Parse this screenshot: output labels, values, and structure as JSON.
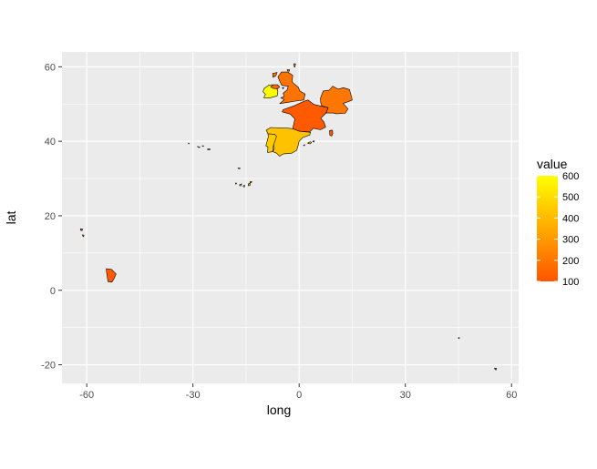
{
  "chart_data": {
    "type": "map",
    "title": "",
    "xlabel": "long",
    "ylabel": "lat",
    "xlim": [
      -67,
      62
    ],
    "ylim": [
      -25,
      64
    ],
    "x_ticks": [
      -60,
      -30,
      0,
      30,
      60
    ],
    "x_tick_labels": [
      "-60",
      "-30",
      "0",
      "30",
      "60"
    ],
    "y_ticks": [
      -20,
      0,
      20,
      40,
      60
    ],
    "y_tick_labels": [
      "-20",
      "0",
      "20",
      "40",
      "60"
    ],
    "grid": true,
    "panel_background": "#ebebeb",
    "legend": {
      "title": "value",
      "position": "right",
      "min": 100,
      "max": 600,
      "low_color": "#ff5500",
      "high_color": "#ffff00",
      "breaks": [
        100,
        200,
        300,
        400,
        500,
        600
      ],
      "break_labels": [
        "100",
        "200",
        "300",
        "400",
        "500",
        "600"
      ]
    },
    "regions": [
      {
        "name": "France",
        "value": 115,
        "polygon": [
          [
            -4.5,
            48.5
          ],
          [
            -1.5,
            49.5
          ],
          [
            1.5,
            50.8
          ],
          [
            2.5,
            51.1
          ],
          [
            4.2,
            49.9
          ],
          [
            6,
            49.5
          ],
          [
            8.2,
            49
          ],
          [
            7.6,
            47.6
          ],
          [
            6.1,
            46.2
          ],
          [
            7,
            45.2
          ],
          [
            7.5,
            43.8
          ],
          [
            6,
            43.1
          ],
          [
            4,
            43.5
          ],
          [
            3,
            42.5
          ],
          [
            0,
            42.7
          ],
          [
            -1.8,
            43.4
          ],
          [
            -1.2,
            46
          ],
          [
            -2.5,
            47.3
          ],
          [
            -4.8,
            47.9
          ]
        ]
      },
      {
        "name": "Spain",
        "value": 420,
        "polygon": [
          [
            -9.3,
            43
          ],
          [
            -8,
            43.7
          ],
          [
            -3,
            43.5
          ],
          [
            -1.8,
            43.4
          ],
          [
            0,
            42.7
          ],
          [
            3.2,
            42.4
          ],
          [
            3,
            41.7
          ],
          [
            1,
            41
          ],
          [
            0,
            40
          ],
          [
            -0.3,
            38.8
          ],
          [
            -0.7,
            37.6
          ],
          [
            -2.1,
            36.8
          ],
          [
            -4.5,
            36.6
          ],
          [
            -5.5,
            36
          ],
          [
            -6.4,
            36.8
          ],
          [
            -7.4,
            37.2
          ],
          [
            -7,
            38.2
          ],
          [
            -7.3,
            39.6
          ],
          [
            -6.9,
            41.9
          ],
          [
            -8.8,
            42
          ]
        ]
      },
      {
        "name": "Portugal",
        "value": 450,
        "polygon": [
          [
            -8.8,
            42
          ],
          [
            -6.9,
            41.9
          ],
          [
            -6.4,
            41.3
          ],
          [
            -7,
            39.6
          ],
          [
            -7.3,
            38.8
          ],
          [
            -7.5,
            37.2
          ],
          [
            -8.9,
            37
          ],
          [
            -8.8,
            38.5
          ],
          [
            -9.4,
            38.8
          ],
          [
            -9,
            40.2
          ],
          [
            -8.7,
            41.2
          ]
        ]
      },
      {
        "name": "Germany",
        "value": 200,
        "polygon": [
          [
            6,
            51.5
          ],
          [
            6.8,
            53.5
          ],
          [
            8.5,
            53.7
          ],
          [
            9.5,
            54.8
          ],
          [
            11,
            54
          ],
          [
            12.5,
            54.4
          ],
          [
            14.2,
            53.9
          ],
          [
            14.6,
            52.6
          ],
          [
            15,
            51.1
          ],
          [
            13.2,
            50.4
          ],
          [
            12.4,
            50.2
          ],
          [
            13.8,
            48.7
          ],
          [
            13,
            47.5
          ],
          [
            10.5,
            47.4
          ],
          [
            9.6,
            47.6
          ],
          [
            7.6,
            47.6
          ],
          [
            8.2,
            49
          ],
          [
            6.4,
            49.5
          ],
          [
            6.1,
            50.3
          ]
        ]
      },
      {
        "name": "United Kingdom",
        "value": 190,
        "polygon": [
          [
            -5.5,
            50.1
          ],
          [
            -3.5,
            50.4
          ],
          [
            -1,
            50.8
          ],
          [
            1.3,
            51.1
          ],
          [
            1.7,
            52.7
          ],
          [
            0.2,
            53.5
          ],
          [
            -0.2,
            54.5
          ],
          [
            -1.5,
            55.5
          ],
          [
            -2,
            56
          ],
          [
            -1.8,
            57.7
          ],
          [
            -3.2,
            58.6
          ],
          [
            -5,
            58.6
          ],
          [
            -6,
            57.3
          ],
          [
            -5.5,
            56.2
          ],
          [
            -4.9,
            55
          ],
          [
            -3.1,
            54.8
          ],
          [
            -3.4,
            53.8
          ],
          [
            -4.5,
            52.9
          ],
          [
            -4.2,
            52
          ],
          [
            -5.2,
            51.7
          ],
          [
            -4.2,
            51.2
          ]
        ]
      },
      {
        "name": "Ireland",
        "value": 590,
        "polygon": [
          [
            -10,
            51.7
          ],
          [
            -8.5,
            51.6
          ],
          [
            -6.2,
            52.2
          ],
          [
            -6,
            53.3
          ],
          [
            -6.2,
            54
          ],
          [
            -6.9,
            54.4
          ],
          [
            -7.5,
            55.2
          ],
          [
            -8.5,
            55.1
          ],
          [
            -9.9,
            54.2
          ],
          [
            -10.2,
            53.3
          ],
          [
            -9.5,
            52.6
          ]
        ]
      },
      {
        "name": "Northern Ireland",
        "value": 160,
        "polygon": [
          [
            -7.3,
            55.2
          ],
          [
            -6.1,
            55.2
          ],
          [
            -5.5,
            54.6
          ],
          [
            -6.1,
            54.1
          ],
          [
            -7.3,
            54.2
          ],
          [
            -8.1,
            54.6
          ]
        ]
      },
      {
        "name": "Corsica",
        "value": 115,
        "polygon": [
          [
            8.6,
            42.9
          ],
          [
            9.4,
            43
          ],
          [
            9.5,
            42.1
          ],
          [
            9.2,
            41.4
          ],
          [
            8.7,
            41.6
          ],
          [
            8.6,
            42.3
          ]
        ]
      },
      {
        "name": "French Guiana",
        "value": 115,
        "polygon": [
          [
            -54.5,
            5.8
          ],
          [
            -53,
            5.6
          ],
          [
            -51.7,
            4.4
          ],
          [
            -52.2,
            3.3
          ],
          [
            -52.9,
            2.2
          ],
          [
            -54,
            2.3
          ],
          [
            -54.2,
            3.6
          ],
          [
            -54.4,
            4.9
          ]
        ]
      },
      {
        "name": "Mallorca",
        "value": 420,
        "polygon": [
          [
            2.4,
            39.5
          ],
          [
            3.1,
            39.9
          ],
          [
            3.5,
            39.7
          ],
          [
            3.1,
            39.3
          ],
          [
            2.6,
            39.4
          ]
        ]
      },
      {
        "name": "Menorca",
        "value": 420,
        "polygon": [
          [
            3.8,
            40
          ],
          [
            4.3,
            40.1
          ],
          [
            4.2,
            39.8
          ],
          [
            3.9,
            39.9
          ]
        ]
      },
      {
        "name": "Ibiza",
        "value": 420,
        "polygon": [
          [
            1.2,
            38.9
          ],
          [
            1.6,
            39.1
          ],
          [
            1.5,
            38.8
          ]
        ]
      },
      {
        "name": "Tenerife",
        "value": 420,
        "polygon": [
          [
            -16.9,
            28.3
          ],
          [
            -16.2,
            28.6
          ],
          [
            -16.5,
            28
          ],
          [
            -16.8,
            28.1
          ]
        ]
      },
      {
        "name": "Gran Canaria",
        "value": 420,
        "polygon": [
          [
            -15.8,
            28
          ],
          [
            -15.4,
            28.2
          ],
          [
            -15.4,
            27.8
          ],
          [
            -15.7,
            27.8
          ]
        ]
      },
      {
        "name": "Fuerteventura",
        "value": 420,
        "polygon": [
          [
            -14.3,
            28.7
          ],
          [
            -13.8,
            28.7
          ],
          [
            -13.9,
            28.1
          ],
          [
            -14.4,
            28.1
          ]
        ]
      },
      {
        "name": "Lanzarote",
        "value": 420,
        "polygon": [
          [
            -13.8,
            29.2
          ],
          [
            -13.4,
            29.2
          ],
          [
            -13.5,
            28.9
          ],
          [
            -13.9,
            28.9
          ]
        ]
      },
      {
        "name": "La Palma",
        "value": 420,
        "polygon": [
          [
            -18,
            28.8
          ],
          [
            -17.7,
            28.8
          ],
          [
            -17.8,
            28.5
          ],
          [
            -18,
            28.6
          ]
        ]
      },
      {
        "name": "Madeira",
        "value": 450,
        "polygon": [
          [
            -17.3,
            32.8
          ],
          [
            -16.7,
            32.8
          ],
          [
            -16.8,
            32.6
          ],
          [
            -17.2,
            32.7
          ]
        ]
      },
      {
        "name": "Guadeloupe",
        "value": 115,
        "polygon": [
          [
            -61.8,
            16.5
          ],
          [
            -61.2,
            16.5
          ],
          [
            -61.3,
            16
          ],
          [
            -61.7,
            16.1
          ]
        ]
      },
      {
        "name": "Martinique",
        "value": 115,
        "polygon": [
          [
            -61.2,
            14.9
          ],
          [
            -60.8,
            14.8
          ],
          [
            -60.9,
            14.4
          ],
          [
            -61.1,
            14.5
          ]
        ]
      },
      {
        "name": "Reunion",
        "value": 115,
        "polygon": [
          [
            55.2,
            -20.9
          ],
          [
            55.8,
            -21
          ],
          [
            55.6,
            -21.4
          ],
          [
            55.3,
            -21.2
          ]
        ]
      },
      {
        "name": "Mayotte",
        "value": 115,
        "polygon": [
          [
            45,
            -12.7
          ],
          [
            45.3,
            -12.7
          ],
          [
            45.2,
            -13
          ],
          [
            45,
            -12.9
          ]
        ]
      },
      {
        "name": "Azores Flores",
        "value": 450,
        "polygon": [
          [
            -31.3,
            39.5
          ],
          [
            -31.1,
            39.5
          ],
          [
            -31.1,
            39.3
          ],
          [
            -31.3,
            39.4
          ]
        ]
      },
      {
        "name": "Azores Faial",
        "value": 450,
        "polygon": [
          [
            -28.8,
            38.6
          ],
          [
            -28.5,
            38.6
          ],
          [
            -28.6,
            38.5
          ]
        ]
      },
      {
        "name": "Azores Pico",
        "value": 450,
        "polygon": [
          [
            -28.5,
            38.5
          ],
          [
            -28,
            38.4
          ],
          [
            -28.3,
            38.3
          ]
        ]
      },
      {
        "name": "Azores Sao Miguel",
        "value": 450,
        "polygon": [
          [
            -25.9,
            37.9
          ],
          [
            -25.1,
            37.9
          ],
          [
            -25.3,
            37.7
          ],
          [
            -25.8,
            37.7
          ]
        ]
      },
      {
        "name": "Azores Terceira",
        "value": 450,
        "polygon": [
          [
            -27.4,
            38.8
          ],
          [
            -27,
            38.8
          ],
          [
            -27.1,
            38.6
          ]
        ]
      },
      {
        "name": "Shetland",
        "value": 190,
        "polygon": [
          [
            -1.5,
            60.8
          ],
          [
            -1,
            60.8
          ],
          [
            -1.2,
            59.9
          ],
          [
            -1.4,
            60.1
          ]
        ]
      },
      {
        "name": "Orkney",
        "value": 190,
        "polygon": [
          [
            -3.4,
            59.2
          ],
          [
            -2.7,
            59.2
          ],
          [
            -2.8,
            58.8
          ],
          [
            -3.3,
            58.9
          ]
        ]
      },
      {
        "name": "Hebrides",
        "value": 190,
        "polygon": [
          [
            -7.5,
            58.2
          ],
          [
            -6.2,
            58.5
          ],
          [
            -6.6,
            57.6
          ],
          [
            -7.4,
            57.2
          ]
        ]
      },
      {
        "name": "Isle of Man",
        "value": 190,
        "polygon": [
          [
            -4.8,
            54.4
          ],
          [
            -4.3,
            54.4
          ],
          [
            -4.5,
            54.1
          ]
        ]
      }
    ]
  }
}
